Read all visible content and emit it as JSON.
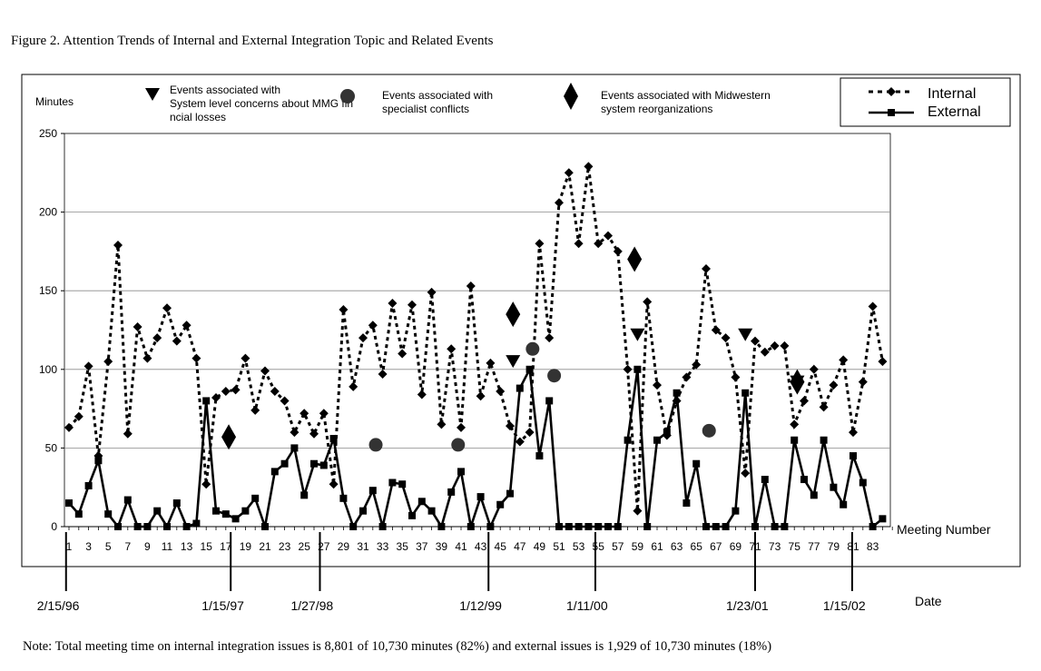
{
  "figure": {
    "title": "Figure 2. Attention Trends of Internal and External Integration Topic and Related Events",
    "note": "Note: Total meeting time on internal integration issues is 8,801 of 10,730 minutes (82%) and external issues is 1,929 of 10,730 minutes (18%)"
  },
  "chart_data": {
    "type": "line",
    "title": "Figure 2. Attention Trends of Internal and External Integration Topic and Related Events",
    "ylabel": "Minutes",
    "xlabel": "Meeting Number",
    "date_label": "Date",
    "ylim": [
      0,
      250
    ],
    "yticks": [
      0,
      50,
      100,
      150,
      200,
      250
    ],
    "xlim": [
      1,
      85
    ],
    "xticks": [
      1,
      3,
      5,
      7,
      9,
      11,
      13,
      15,
      17,
      19,
      21,
      23,
      25,
      27,
      29,
      31,
      33,
      35,
      37,
      39,
      41,
      43,
      45,
      47,
      49,
      51,
      53,
      55,
      57,
      59,
      61,
      63,
      65,
      67,
      69,
      71,
      73,
      75,
      77,
      79,
      81,
      83
    ],
    "grid": "horizontal",
    "legend_position": "top-right",
    "series": [
      {
        "name": "Internal",
        "style": "dotted",
        "marker": "diamond",
        "x": [
          1,
          2,
          3,
          4,
          5,
          6,
          7,
          8,
          9,
          10,
          11,
          12,
          13,
          14,
          15,
          16,
          17,
          18,
          19,
          20,
          21,
          22,
          23,
          24,
          25,
          26,
          27,
          28,
          29,
          30,
          31,
          32,
          33,
          34,
          35,
          36,
          37,
          38,
          39,
          40,
          41,
          42,
          43,
          44,
          45,
          46,
          47,
          48,
          49,
          50,
          51,
          52,
          53,
          54,
          55,
          56,
          57,
          58,
          59,
          60,
          61,
          62,
          63,
          64,
          65,
          66,
          67,
          68,
          69,
          70,
          71,
          72,
          73,
          74,
          75,
          76,
          77,
          78,
          79,
          80,
          81,
          82,
          83,
          84
        ],
        "values": [
          63,
          70,
          102,
          45,
          105,
          179,
          59,
          127,
          107,
          120,
          139,
          118,
          128,
          107,
          27,
          82,
          86,
          87,
          107,
          74,
          99,
          86,
          80,
          60,
          72,
          59,
          72,
          27,
          138,
          89,
          120,
          128,
          97,
          142,
          110,
          141,
          84,
          149,
          65,
          113,
          63,
          153,
          83,
          104,
          86,
          64,
          54,
          60,
          180,
          120,
          206,
          225,
          180,
          229,
          180,
          185,
          175,
          100,
          10,
          143,
          90,
          58,
          80,
          95,
          103,
          164,
          125,
          120,
          95,
          34,
          118,
          111,
          115,
          115,
          65,
          80,
          100,
          76,
          90,
          106,
          60,
          92,
          140,
          105
        ]
      },
      {
        "name": "External",
        "style": "solid",
        "marker": "square",
        "x": [
          1,
          2,
          3,
          4,
          5,
          6,
          7,
          8,
          9,
          10,
          11,
          12,
          13,
          14,
          15,
          16,
          17,
          18,
          19,
          20,
          21,
          22,
          23,
          24,
          25,
          26,
          27,
          28,
          29,
          30,
          31,
          32,
          33,
          34,
          35,
          36,
          37,
          38,
          39,
          40,
          41,
          42,
          43,
          44,
          45,
          46,
          47,
          48,
          49,
          50,
          51,
          52,
          53,
          54,
          55,
          56,
          57,
          58,
          59,
          60,
          61,
          62,
          63,
          64,
          65,
          66,
          67,
          68,
          69,
          70,
          71,
          72,
          73,
          74,
          75,
          76,
          77,
          78,
          79,
          80,
          81,
          82,
          83,
          84
        ],
        "values": [
          15,
          8,
          26,
          42,
          8,
          0,
          17,
          0,
          0,
          10,
          0,
          15,
          0,
          2,
          80,
          10,
          8,
          5,
          10,
          18,
          0,
          35,
          40,
          50,
          20,
          40,
          39,
          56,
          18,
          0,
          10,
          23,
          0,
          28,
          27,
          7,
          16,
          10,
          0,
          22,
          35,
          0,
          19,
          0,
          14,
          21,
          88,
          100,
          45,
          80,
          0,
          0,
          0,
          0,
          0,
          0,
          0,
          55,
          100,
          0,
          55,
          60,
          85,
          15,
          40,
          0,
          0,
          0,
          10,
          85,
          0,
          30,
          0,
          0,
          55,
          30,
          20,
          55,
          25,
          14,
          45,
          28,
          0,
          5
        ]
      }
    ],
    "events": [
      {
        "label": "Events associated with System level concerns about MMG financial losses",
        "marker": "triangle-down",
        "points": [
          {
            "x": 46.3,
            "y": 105
          },
          {
            "x": 59.0,
            "y": 122
          },
          {
            "x": 70.0,
            "y": 122
          },
          {
            "x": 75.3,
            "y": 92
          }
        ]
      },
      {
        "label": "Events associated with specialist conflicts",
        "marker": "circle",
        "points": [
          {
            "x": 32.3,
            "y": 52
          },
          {
            "x": 40.7,
            "y": 52
          },
          {
            "x": 48.3,
            "y": 113
          },
          {
            "x": 50.5,
            "y": 96
          },
          {
            "x": 66.3,
            "y": 61
          }
        ]
      },
      {
        "label": "Events associated with Midwestern system reorganizations",
        "marker": "diamond",
        "points": [
          {
            "x": 17.3,
            "y": 57
          },
          {
            "x": 46.3,
            "y": 135
          },
          {
            "x": 58.7,
            "y": 170
          },
          {
            "x": 75.3,
            "y": 92
          }
        ]
      }
    ],
    "dates": [
      {
        "label": "2/15/96",
        "x": 0.7
      },
      {
        "label": "1/15/97",
        "x": 17.5
      },
      {
        "label": "1/27/98",
        "x": 26.6
      },
      {
        "label": "1/12/99",
        "x": 43.8
      },
      {
        "label": "1/11/00",
        "x": 54.7
      },
      {
        "label": "1/23/01",
        "x": 71.0
      },
      {
        "label": "1/15/02",
        "x": 80.9
      }
    ]
  }
}
